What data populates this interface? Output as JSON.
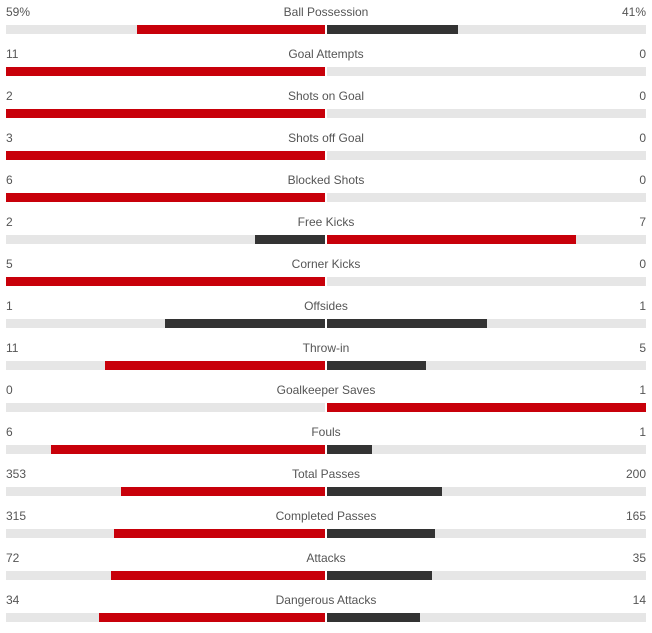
{
  "colors": {
    "leader": "#c8000a",
    "trailer": "#333333",
    "track": "#e6e6e6",
    "text": "#555555"
  },
  "stats": [
    {
      "name": "Ball Possession",
      "home": "59%",
      "away": "41%",
      "home_value": 59,
      "away_value": 41,
      "home_share": 0.59,
      "away_share": 0.41
    },
    {
      "name": "Goal Attempts",
      "home": "11",
      "away": "0",
      "home_value": 11,
      "away_value": 0,
      "home_share": 1.0,
      "away_share": 0.0
    },
    {
      "name": "Shots on Goal",
      "home": "2",
      "away": "0",
      "home_value": 2,
      "away_value": 0,
      "home_share": 1.0,
      "away_share": 0.0
    },
    {
      "name": "Shots off Goal",
      "home": "3",
      "away": "0",
      "home_value": 3,
      "away_value": 0,
      "home_share": 1.0,
      "away_share": 0.0
    },
    {
      "name": "Blocked Shots",
      "home": "6",
      "away": "0",
      "home_value": 6,
      "away_value": 0,
      "home_share": 1.0,
      "away_share": 0.0
    },
    {
      "name": "Free Kicks",
      "home": "2",
      "away": "7",
      "home_value": 2,
      "away_value": 7,
      "home_share": 0.22,
      "away_share": 0.78
    },
    {
      "name": "Corner Kicks",
      "home": "5",
      "away": "0",
      "home_value": 5,
      "away_value": 0,
      "home_share": 1.0,
      "away_share": 0.0
    },
    {
      "name": "Offsides",
      "home": "1",
      "away": "1",
      "home_value": 1,
      "away_value": 1,
      "home_share": 0.5,
      "away_share": 0.5
    },
    {
      "name": "Throw-in",
      "home": "11",
      "away": "5",
      "home_value": 11,
      "away_value": 5,
      "home_share": 0.69,
      "away_share": 0.31
    },
    {
      "name": "Goalkeeper Saves",
      "home": "0",
      "away": "1",
      "home_value": 0,
      "away_value": 1,
      "home_share": 0.0,
      "away_share": 1.0
    },
    {
      "name": "Fouls",
      "home": "6",
      "away": "1",
      "home_value": 6,
      "away_value": 1,
      "home_share": 0.86,
      "away_share": 0.14
    },
    {
      "name": "Total Passes",
      "home": "353",
      "away": "200",
      "home_value": 353,
      "away_value": 200,
      "home_share": 0.64,
      "away_share": 0.36
    },
    {
      "name": "Completed Passes",
      "home": "315",
      "away": "165",
      "home_value": 315,
      "away_value": 165,
      "home_share": 0.66,
      "away_share": 0.34
    },
    {
      "name": "Attacks",
      "home": "72",
      "away": "35",
      "home_value": 72,
      "away_value": 35,
      "home_share": 0.67,
      "away_share": 0.33
    },
    {
      "name": "Dangerous Attacks",
      "home": "34",
      "away": "14",
      "home_value": 34,
      "away_value": 14,
      "home_share": 0.71,
      "away_share": 0.29
    }
  ]
}
